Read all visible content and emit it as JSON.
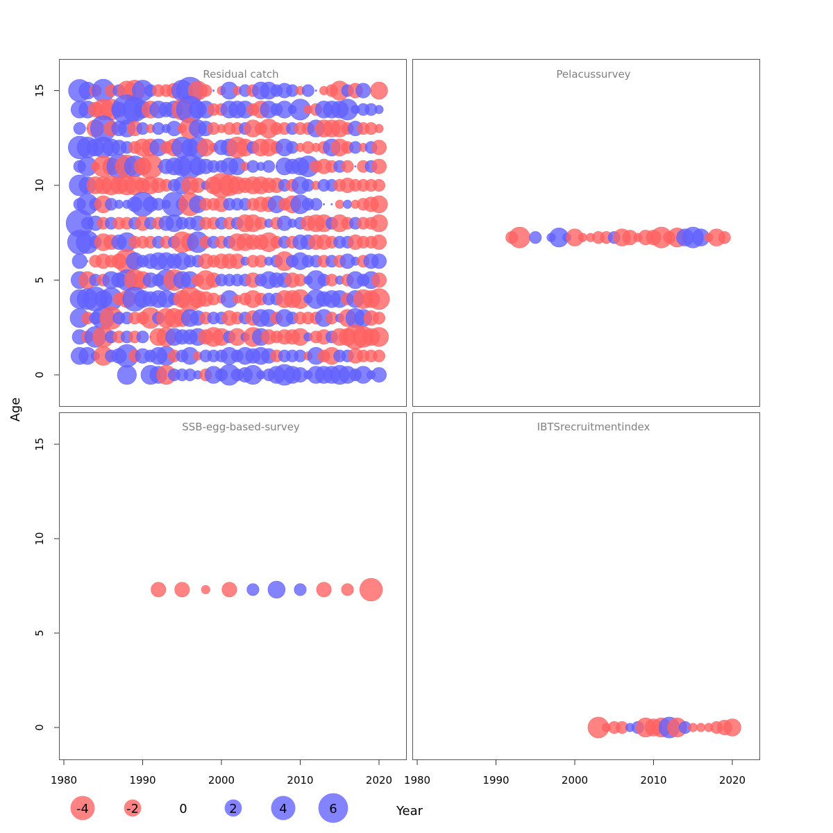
{
  "chart_data": {
    "type": "scatter",
    "subtype": "bubble-residuals",
    "xlabel": "Year",
    "ylabel": "Age",
    "xlim": [
      1979,
      2023
    ],
    "ylim": [
      -1.7,
      16.5
    ],
    "x_ticks": [
      1980,
      1990,
      2000,
      2010,
      2020
    ],
    "y_ticks": [
      0,
      5,
      10,
      15
    ],
    "colors": {
      "positive": "#6060ff",
      "negative": "#ff6060"
    },
    "legend": {
      "values": [
        -4,
        -2,
        0,
        2,
        4,
        6
      ],
      "labels": [
        "-4",
        "-2",
        "0",
        "2",
        "4",
        "6"
      ]
    },
    "panels": [
      {
        "title": "Residual catch",
        "y_level": null,
        "grid": {
          "years": [
            1982,
            1983,
            1984,
            1985,
            1986,
            1987,
            1988,
            1989,
            1990,
            1991,
            1992,
            1993,
            1994,
            1995,
            1996,
            1997,
            1998,
            1999,
            2000,
            2001,
            2002,
            2003,
            2004,
            2005,
            2006,
            2007,
            2008,
            2009,
            2010,
            2011,
            2012,
            2013,
            2014,
            2015,
            2016,
            2017,
            2018,
            2019,
            2020
          ],
          "rows": [
            {
              "age": 15,
              "values": [
                3.4,
                2,
                -1,
                3.5,
                -1,
                1,
                -2.5,
                -3,
                3,
                1,
                -1,
                -1,
                -1.5,
                3,
                5,
                -2.5,
                -1,
                0,
                -0.5,
                2,
                -0.5,
                1,
                -1,
                2,
                2,
                1,
                1.5,
                1,
                -0.5,
                1,
                0,
                -0.5,
                -1,
                -2.5,
                1,
                -1.5,
                1.5,
                0,
                -2
              ]
            },
            {
              "age": 14,
              "values": [
                2,
                2,
                -1.5,
                -3,
                -3,
                1.5,
                6,
                4,
                2,
                -2,
                2,
                1.5,
                2,
                -3,
                5,
                2,
                2,
                -1,
                -1,
                2,
                2,
                2,
                -1,
                -2,
                2,
                1,
                2,
                0.5,
                3,
                -0.5,
                -1,
                2,
                2,
                2,
                3,
                0.5,
                1,
                1,
                0.5
              ]
            },
            {
              "age": 13,
              "values": [
                1,
                0,
                -2,
                4.5,
                -1.5,
                1.5,
                2,
                -1.5,
                1,
                -0.5,
                1,
                0.5,
                1.5,
                -0.5,
                -3,
                2,
                1.5,
                -1,
                -0.5,
                -1,
                -1,
                1,
                -2,
                -1,
                -2.5,
                -1,
                -1,
                1,
                -1,
                -1,
                2,
                -2,
                -2,
                -2,
                -1,
                1.5,
                -1,
                -1,
                -0.5
              ]
            },
            {
              "age": 12,
              "values": [
                3.5,
                3,
                2,
                3,
                2,
                1.5,
                1,
                -1,
                -2,
                -2,
                2,
                -1,
                -2,
                3,
                2,
                3,
                -2,
                -0.5,
                1.5,
                2,
                -3,
                -2,
                1,
                -2,
                -2,
                -1,
                2,
                1,
                -0.5,
                -1,
                -0.5,
                -1,
                2,
                -2,
                -1,
                1,
                -0.5,
                1,
                -1.5
              ]
            },
            {
              "age": 11,
              "values": [
                1,
                2.5,
                -0.5,
                -3,
                -2,
                4,
                -3.5,
                3,
                -2,
                -4,
                0,
                1.5,
                2,
                2.5,
                4,
                2,
                1.5,
                1,
                1,
                2,
                2,
                -0.5,
                1,
                0.5,
                1,
                0,
                2,
                1.5,
                2,
                3,
                -1,
                -1.5,
                -1,
                1,
                -1,
                0,
                -1,
                1,
                -1.5
              ]
            },
            {
              "age": 10,
              "values": [
                3,
                2,
                -2,
                -2,
                -2.5,
                -2,
                -2.5,
                -2.5,
                -1.5,
                -2,
                -1.5,
                -1,
                1,
                2,
                -2,
                -1.5,
                0.5,
                -2,
                -4,
                -3,
                -2,
                -1.5,
                -2,
                -2,
                -1.5,
                -1.5,
                1,
                -1,
                2,
                1,
                -0.5,
                1,
                1,
                -1,
                -1.5,
                -1,
                -1,
                -1,
                -1
              ]
            },
            {
              "age": 9,
              "values": [
                1,
                3,
                1,
                -2,
                1,
                0.5,
                0.5,
                1.5,
                4,
                1.5,
                1,
                0.5,
                4,
                1,
                -3.5,
                2,
                -1,
                -1,
                -1.5,
                1,
                1,
                1,
                -1,
                -1.5,
                -1.5,
                2,
                -1,
                -2,
                2.5,
                1,
                1,
                0,
                0,
                -0.5,
                0.5,
                -0.5,
                -1,
                -1.5,
                -2
              ]
            },
            {
              "age": 8,
              "values": [
                5,
                1,
                1.5,
                -1,
                1,
                -1,
                -1,
                1,
                -1.5,
                1,
                -1,
                1.5,
                2,
                1,
                1,
                1.5,
                -1,
                -1,
                1,
                -1,
                1,
                -2,
                -2,
                -1,
                0.5,
                -1,
                1.5,
                0.5,
                1,
                -1.5,
                -2,
                -2,
                1,
                -2,
                -1,
                1,
                -1,
                -1,
                -2
              ]
            },
            {
              "age": 7,
              "values": [
                4,
                3.5,
                1,
                -2,
                -1.5,
                1.5,
                2.5,
                -1,
                -1,
                -1,
                1,
                -1,
                1,
                -3,
                -2,
                3,
                -1,
                1,
                -1,
                1,
                -2,
                -2,
                -1.5,
                -1.5,
                -2.5,
                -1,
                1,
                -1,
                1.5,
                1.5,
                -1.5,
                -1.5,
                -1,
                1,
                1,
                -1.5,
                -1,
                -1,
                -1.5
              ]
            },
            {
              "age": 6,
              "values": [
                1.5,
                0,
                -1,
                -1.5,
                -1,
                -1.5,
                -4,
                2,
                1,
                1.5,
                2,
                2,
                1.5,
                2,
                1,
                1,
                -1.5,
                -1,
                -1.5,
                -1.5,
                -1.5,
                0.5,
                -1,
                -1,
                0.5,
                1,
                -2.5,
                1,
                2,
                1,
                1,
                -1,
                1,
                -1,
                1.5,
                0.5,
                -1,
                1.5,
                1.5
              ]
            },
            {
              "age": 5,
              "values": [
                2,
                -2,
                1,
                -1,
                2,
                1.5,
                3,
                -3,
                -2,
                1.5,
                1,
                3,
                -3,
                2,
                2,
                -1,
                -2.5,
                -1.5,
                1,
                1,
                1,
                1,
                -1.5,
                1,
                2,
                1.5,
                1.5,
                -1.5,
                -1,
                0.5,
                2.5,
                1,
                -1,
                0.5,
                -1,
                2,
                1,
                2,
                -1.5
              ]
            },
            {
              "age": 4,
              "values": [
                2.5,
                3,
                4,
                2,
                3.5,
                -1,
                -2,
                4,
                2,
                1.5,
                2,
                2,
                1,
                -2,
                -4,
                -2,
                -1.5,
                -1,
                -0.5,
                2,
                -0.5,
                -1,
                -2,
                -1,
                1,
                1,
                -2,
                -2,
                -2.5,
                0.5,
                2.5,
                1.5,
                2,
                2,
                -1,
                2,
                -2.5,
                -2,
                -3
              ]
            },
            {
              "age": 3,
              "values": [
                2.5,
                -1,
                1,
                3.5,
                -3.5,
                1,
                1,
                -1,
                -1,
                -3,
                1,
                -2.5,
                -2.5,
                -2,
                2,
                1.5,
                -1,
                1,
                1,
                -1.5,
                -1,
                1,
                -1.5,
                2,
                2,
                -1,
                2,
                1,
                -1,
                -1,
                -1,
                2,
                -1,
                0.5,
                -2,
                2.5,
                2,
                -1.5,
                -1
              ]
            },
            {
              "age": 2,
              "values": [
                1.5,
                -1,
                3,
                -3,
                1,
                -1,
                1,
                -1,
                1,
                0,
                -2,
                -2.5,
                2,
                1.5,
                1.5,
                2,
                -1.5,
                -2.5,
                -2,
                1,
                -2,
                0.5,
                -2.5,
                2,
                -1.5,
                -1,
                -1.5,
                -1.5,
                -2,
                0.5,
                -1,
                -1.5,
                1,
                -2,
                -2,
                -4,
                -3,
                -2,
                -2.5
              ]
            },
            {
              "age": 1,
              "values": [
                2,
                2,
                0.5,
                -2.5,
                1,
                1.5,
                3.5,
                -1,
                1.5,
                1,
                2,
                2.5,
                -1,
                1,
                2,
                -0.5,
                1,
                1,
                1,
                2,
                1,
                2,
                1.5,
                2,
                1.5,
                -1,
                1,
                1,
                1,
                -0.5,
                2,
                -1,
                -2,
                1,
                1,
                -1.5,
                -1,
                -1,
                -1
              ]
            },
            {
              "age": 0,
              "values": [
                null,
                null,
                null,
                null,
                null,
                null,
                2.5,
                null,
                null,
                2.5,
                2,
                -2.5,
                1,
                1,
                1,
                0.5,
                -1,
                2,
                1,
                3,
                1,
                1.5,
                2.5,
                0.5,
                1,
                2,
                3,
                2,
                1.5,
                0.5,
                2,
                2,
                2,
                2.5,
                2,
                1,
                2,
                0.5,
                1.5
              ]
            }
          ]
        }
      },
      {
        "title": "Pelacussurvey",
        "y_level": 7.25,
        "points": {
          "years": [
            1992,
            1993,
            1995,
            1997,
            1998,
            1999,
            2000,
            2001,
            2002,
            2003,
            2004,
            2005,
            2006,
            2007,
            2008,
            2009,
            2010,
            2011,
            2012,
            2013,
            2014,
            2015,
            2016,
            2017,
            2018,
            2019
          ],
          "values": [
            -1,
            -3,
            1,
            0.5,
            2.5,
            0.5,
            -2,
            -0.5,
            -0.5,
            -1,
            -1,
            1,
            -2,
            -1.5,
            -0.5,
            -1.5,
            -1.5,
            -3,
            -1,
            -2.5,
            2,
            3,
            2,
            -0.5,
            -2,
            -1
          ]
        }
      },
      {
        "title": "SSB-egg-based-survey",
        "y_level": 7.3,
        "points": {
          "years": [
            1992,
            1995,
            1998,
            2001,
            2004,
            2007,
            2010,
            2013,
            2016,
            2019
          ],
          "values": [
            -1.5,
            -1.5,
            -0.5,
            -1.5,
            1,
            2,
            1,
            -1.5,
            -1,
            -3.5
          ]
        }
      },
      {
        "title": "IBTSrecruitmentindex",
        "y_level": 0,
        "points": {
          "years": [
            2003,
            2004,
            2005,
            2006,
            2007,
            2008,
            2009,
            2010,
            2011,
            2012,
            2013,
            2014,
            2015,
            2016,
            2017,
            2018,
            2019,
            2020
          ],
          "values": [
            -3,
            -0.5,
            -1,
            -1,
            0.5,
            1,
            -2.5,
            -2,
            -2.5,
            3,
            -2.5,
            1,
            -0.5,
            -0.5,
            -0.5,
            -1,
            -1.5,
            -2
          ]
        }
      }
    ]
  }
}
